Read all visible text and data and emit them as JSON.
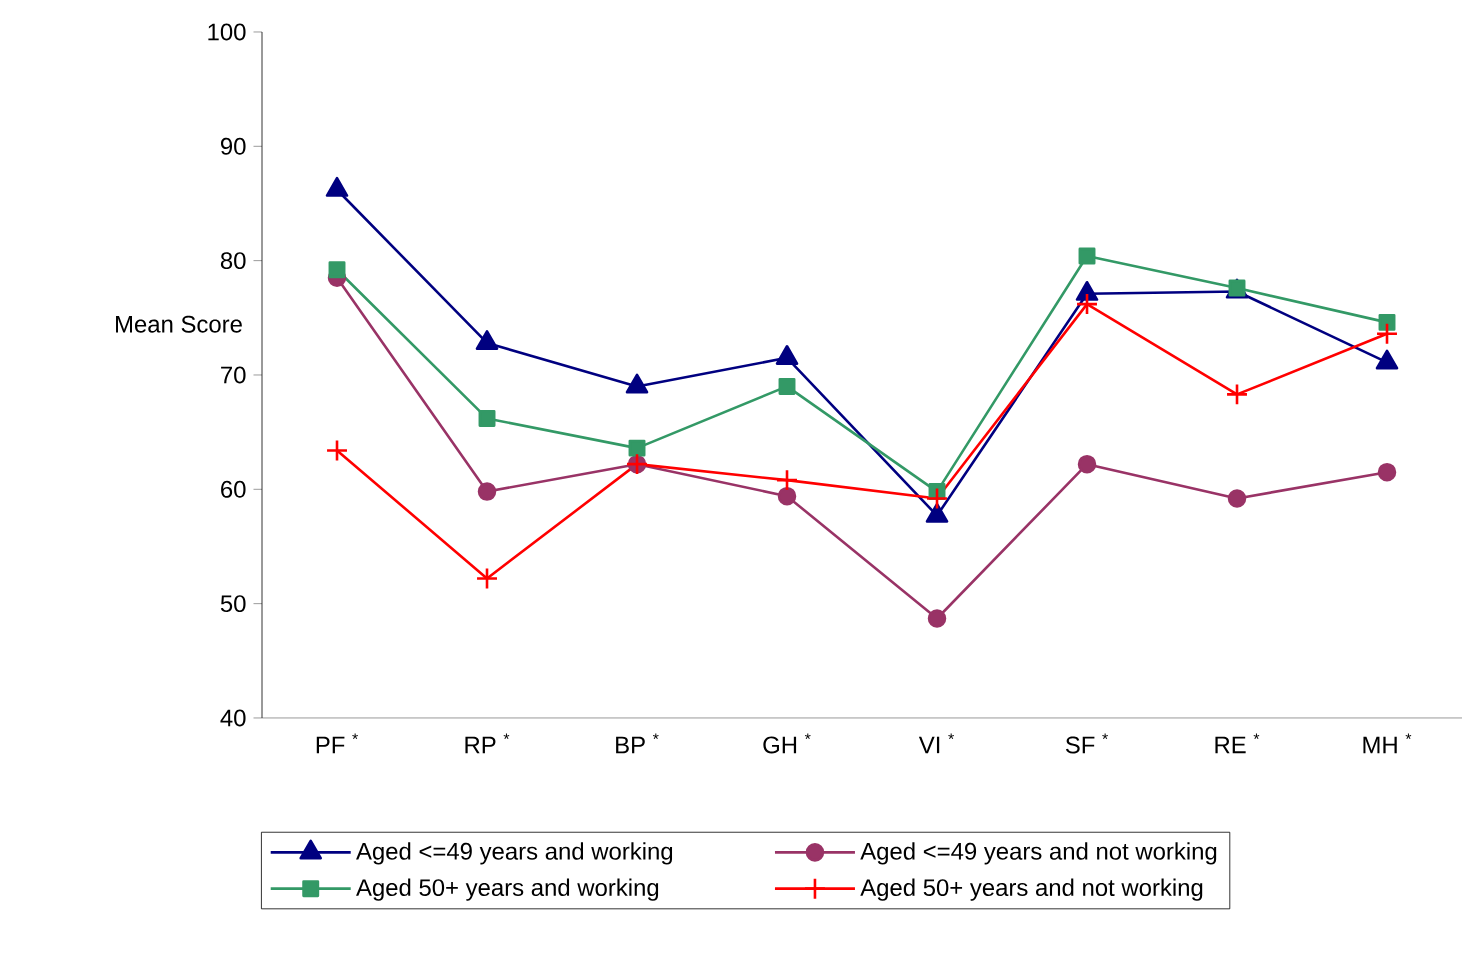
{
  "chart_data": {
    "type": "line",
    "ylabel": "Mean Score",
    "categories": [
      "PF $^{*}$",
      "RP $^{*}$",
      "BP $^{*}$",
      "GH $^{*}$",
      "VI $^{*}$",
      "SF $^{*}$",
      "RE $^{*}$",
      "MH $^{*}$"
    ],
    "ylim": [
      40,
      100
    ],
    "yticks": [
      40,
      50,
      60,
      70,
      80,
      90,
      100
    ],
    "legend": "bottom",
    "line_style": "solid",
    "series": [
      {
        "name": "Aged <=49 years and working",
        "color": "#000080",
        "marker": "triangle",
        "values": [
          86.2,
          72.8,
          69.0,
          71.5,
          57.7,
          77.1,
          77.3,
          71.1
        ]
      },
      {
        "name": "Aged <=49 years and not working",
        "color": "#993366",
        "marker": "circle",
        "values": [
          78.5,
          59.8,
          62.2,
          59.4,
          48.7,
          62.2,
          59.2,
          61.5
        ]
      },
      {
        "name": "Aged 50+ years and working",
        "color": "#339966",
        "marker": "square",
        "values": [
          79.2,
          66.2,
          63.6,
          69.0,
          59.8,
          80.4,
          77.6,
          74.6
        ]
      },
      {
        "name": "Aged 50+ years and not working",
        "color": "#ff0000",
        "marker": "cross",
        "values": [
          63.4,
          52.2,
          62.2,
          60.8,
          59.2,
          76.2,
          68.3,
          73.6
        ]
      }
    ]
  }
}
